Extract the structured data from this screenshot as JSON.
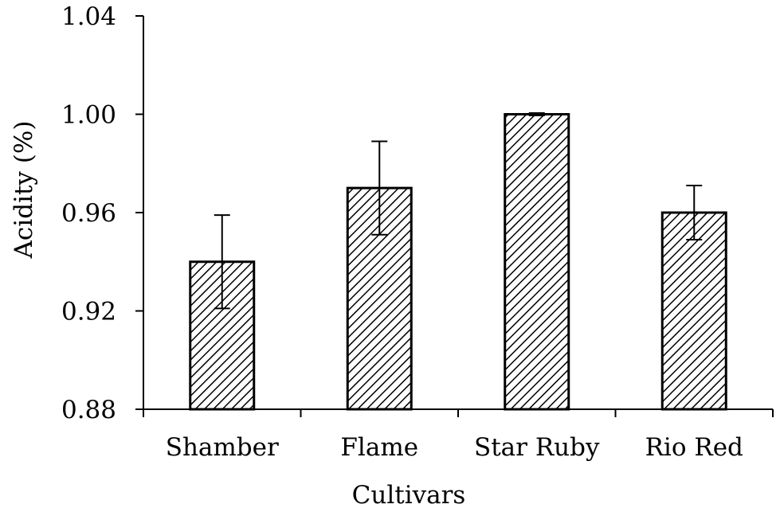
{
  "chart_data": {
    "type": "bar",
    "title": "",
    "xlabel": "Cultivars",
    "ylabel": "Acidity  (%)",
    "categories": [
      "Shamber",
      "Flame",
      "Star Ruby",
      "Rio Red"
    ],
    "values": [
      0.94,
      0.97,
      1.0,
      0.96
    ],
    "error_bars": [
      0.019,
      0.019,
      0.0005,
      0.011
    ],
    "ylim": [
      0.88,
      1.04
    ],
    "yticks": [
      0.88,
      0.92,
      0.96,
      1.0,
      1.04
    ],
    "ytick_labels": [
      "0.88",
      "0.92",
      "0.96",
      "1.00",
      "1.04"
    ],
    "grid": false,
    "bar_pattern": "diagonal-hatch",
    "colors": {
      "bar_stroke": "#000000",
      "hatch": "#000000",
      "background": "#ffffff"
    }
  }
}
